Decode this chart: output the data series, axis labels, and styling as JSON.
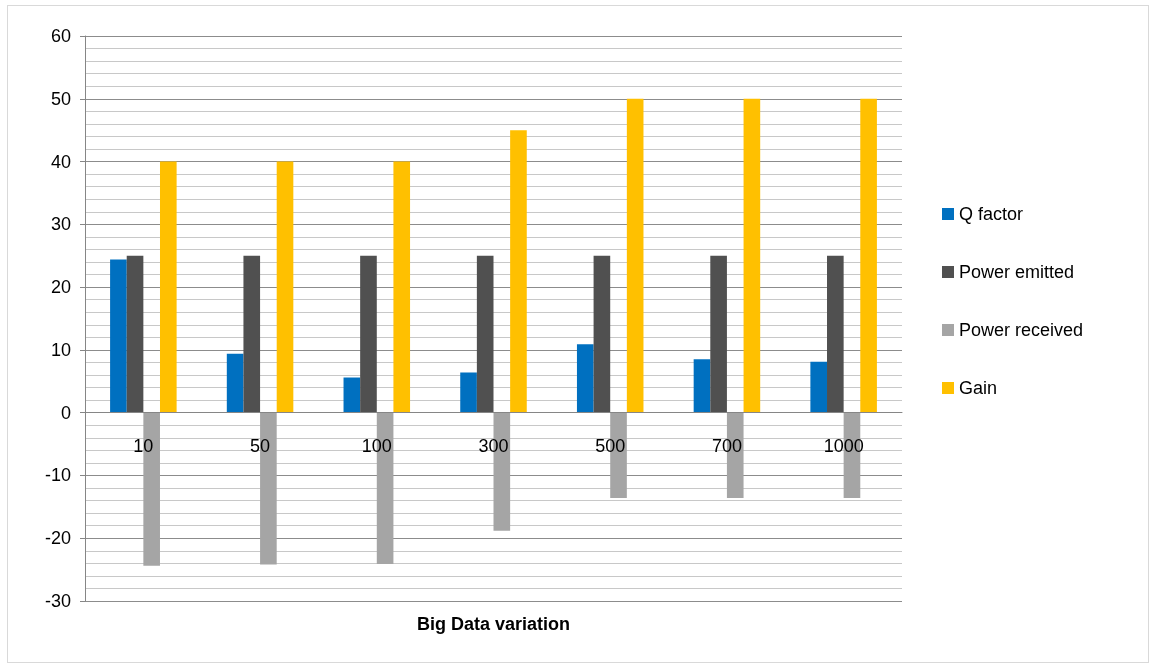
{
  "chart_data": {
    "type": "bar",
    "xlabel": "Big Data variation",
    "categories": [
      "10",
      "50",
      "100",
      "300",
      "500",
      "700",
      "1000"
    ],
    "series": [
      {
        "name": "Q factor",
        "color": "#0070c0",
        "values": [
          24.4,
          9.4,
          5.6,
          6.4,
          10.9,
          8.5,
          8.1
        ]
      },
      {
        "name": "Power emitted",
        "color": "#505050",
        "values": [
          25,
          25,
          25,
          25,
          25,
          25,
          25
        ]
      },
      {
        "name": "Power received",
        "color": "#a5a5a5",
        "values": [
          -24.4,
          -24.2,
          -24.1,
          -18.8,
          -13.6,
          -13.6,
          -13.6
        ]
      },
      {
        "name": "Gain",
        "color": "#ffc000",
        "values": [
          40,
          40,
          40,
          45,
          50,
          50,
          50
        ]
      }
    ],
    "ylim": [
      -30,
      60
    ],
    "yticks": [
      -30,
      -20,
      -10,
      0,
      10,
      20,
      30,
      40,
      50,
      60
    ],
    "grid": "y",
    "legend": "right"
  }
}
